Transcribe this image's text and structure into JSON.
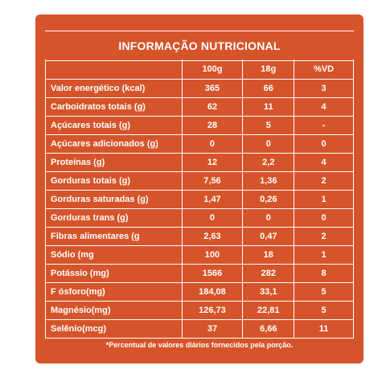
{
  "colors": {
    "panel_bg": "#d6542a",
    "text": "#ffffff",
    "lines": "#ffffff"
  },
  "table": {
    "title": "INFORMAÇÃO NUTRICIONAL",
    "headers": [
      "",
      "100g",
      "18g",
      "%VD"
    ],
    "rows": [
      {
        "label": "Valor energético (kcal)",
        "v100": "365",
        "v18": "66",
        "vd": "3"
      },
      {
        "label": "Carboidratos totais (g)",
        "v100": "62",
        "v18": "11",
        "vd": "4"
      },
      {
        "label": "Açúcares totais (g)",
        "v100": "28",
        "v18": "5",
        "vd": "-"
      },
      {
        "label": "Açúcares adicionados (g)",
        "v100": "0",
        "v18": "0",
        "vd": "0"
      },
      {
        "label": "Proteínas (g)",
        "v100": "12",
        "v18": "2,2",
        "vd": "4"
      },
      {
        "label": "Gorduras totais (g)",
        "v100": "7,56",
        "v18": "1,36",
        "vd": "2"
      },
      {
        "label": "Gorduras saturadas (g)",
        "v100": "1,47",
        "v18": "0,26",
        "vd": "1"
      },
      {
        "label": "Gorduras trans (g)",
        "v100": "0",
        "v18": "0",
        "vd": "0"
      },
      {
        "label": "Fibras alimentares (g",
        "v100": "2,63",
        "v18": "0,47",
        "vd": "2"
      },
      {
        "label": "Sódio (mg",
        "v100": "100",
        "v18": "18",
        "vd": "1"
      },
      {
        "label": "Potássio (mg)",
        "v100": "1566",
        "v18": "282",
        "vd": "8"
      },
      {
        "label": "F ósforo(mg)",
        "v100": "184,08",
        "v18": "33,1",
        "vd": "5"
      },
      {
        "label": "Magnésio(mg)",
        "v100": "126,73",
        "v18": "22,81",
        "vd": "5"
      },
      {
        "label": "Selênio(mcg)",
        "v100": "37",
        "v18": "6,66",
        "vd": "11"
      }
    ],
    "footnote": "*Percentual de valores diários fornecidos pela porção."
  }
}
